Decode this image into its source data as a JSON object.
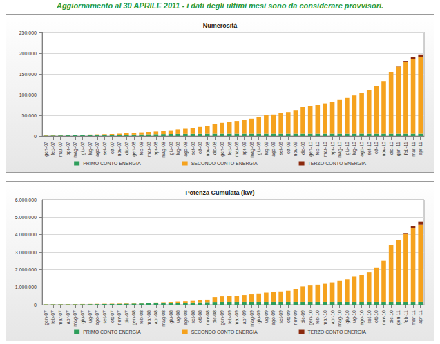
{
  "header": {
    "title": "Aggiornamento al 30 APRILE 2011 - i dati degli ultimi mesi sono da considerare provvisori."
  },
  "chart_data": [
    {
      "type": "bar",
      "title": "Numerosità",
      "stacked": true,
      "grid": true,
      "legend": "bottom",
      "categories": [
        "gen-07",
        "feb-07",
        "mar-07",
        "apr-07",
        "mag-07",
        "giu-07",
        "lug-07",
        "ago-07",
        "set-07",
        "ott-07",
        "nov-07",
        "dic-07",
        "gen-08",
        "feb-08",
        "mar-08",
        "apr-08",
        "mag-08",
        "giu-08",
        "lug-08",
        "ago-08",
        "set-08",
        "ott-08",
        "nov-08",
        "dic-08",
        "gen-09",
        "feb-09",
        "mar-09",
        "apr-09",
        "mag-09",
        "giu-09",
        "lug-09",
        "ago-09",
        "set-09",
        "ott-09",
        "nov-09",
        "dic-09",
        "gen-10",
        "feb-10",
        "mar-10",
        "apr-10",
        "mag-10",
        "giu-10",
        "lug-10",
        "ago-10",
        "set-10",
        "ott-10",
        "nov-10",
        "dic-10",
        "gen-11",
        "feb-11",
        "mar-11",
        "apr-11"
      ],
      "ylim": [
        0,
        250000
      ],
      "yticks": [
        0,
        {
          "value": 50000,
          "label": "50.000"
        },
        {
          "value": 100000,
          "label": "100.000"
        },
        {
          "value": 150000,
          "label": "150.000"
        },
        {
          "value": 200000,
          "label": "200.000"
        },
        {
          "value": 250000,
          "label": "250.000"
        }
      ],
      "series": [
        {
          "name": "PRIMO CONTO ENERGIA",
          "color": "#2e9e5b",
          "values": [
            1000,
            1200,
            1400,
            1600,
            1800,
            2000,
            2200,
            2400,
            2600,
            2800,
            3000,
            3300,
            3600,
            3900,
            4200,
            4500,
            4800,
            5000,
            5200,
            5300,
            5400,
            5500,
            5600,
            5700,
            5700,
            5700,
            5700,
            5700,
            5700,
            5700,
            5700,
            5700,
            5700,
            5700,
            5700,
            5700,
            5700,
            5700,
            5700,
            5700,
            5700,
            5700,
            5700,
            5700,
            5700,
            5700,
            5700,
            5700,
            5700,
            5700,
            5700,
            5700
          ]
        },
        {
          "name": "SECONDO CONTO ENERGIA",
          "color": "#f5a21e",
          "values": [
            1000,
            1000,
            1100,
            1200,
            1200,
            1300,
            1400,
            1600,
            1900,
            2200,
            2800,
            3700,
            4400,
            5100,
            5800,
            6500,
            7700,
            9000,
            10800,
            12200,
            14100,
            16500,
            19400,
            24300,
            26300,
            28300,
            30800,
            33300,
            36300,
            40300,
            44300,
            46300,
            49300,
            52300,
            57300,
            64300,
            66300,
            69300,
            73300,
            77300,
            81300,
            86300,
            92300,
            98300,
            104300,
            114300,
            127300,
            149300,
            161800,
            172800,
            180800,
            185300
          ]
        },
        {
          "name": "TERZO CONTO ENERGIA",
          "color": "#8b2a0e",
          "values": [
            0,
            0,
            0,
            0,
            0,
            0,
            0,
            0,
            0,
            0,
            0,
            0,
            0,
            0,
            0,
            0,
            0,
            0,
            0,
            0,
            0,
            0,
            0,
            0,
            0,
            0,
            0,
            0,
            0,
            0,
            0,
            0,
            0,
            0,
            0,
            0,
            0,
            0,
            0,
            0,
            0,
            0,
            0,
            0,
            0,
            0,
            0,
            0,
            500,
            1500,
            3500,
            6000
          ]
        }
      ]
    },
    {
      "type": "bar",
      "title": "Potenza Cumulata (kW)",
      "stacked": true,
      "grid": true,
      "legend": "bottom",
      "categories": [
        "gen-07",
        "feb-07",
        "mar-07",
        "apr-07",
        "mag-07",
        "giu-07",
        "lug-07",
        "ago-07",
        "set-07",
        "ott-07",
        "nov-07",
        "dic-07",
        "gen-08",
        "feb-08",
        "mar-08",
        "apr-08",
        "mag-08",
        "giu-08",
        "lug-08",
        "ago-08",
        "set-08",
        "ott-08",
        "nov-08",
        "dic-08",
        "gen-09",
        "feb-09",
        "mar-09",
        "apr-09",
        "mag-09",
        "giu-09",
        "lug-09",
        "ago-09",
        "set-09",
        "ott-09",
        "nov-09",
        "dic-09",
        "gen-10",
        "feb-10",
        "mar-10",
        "apr-10",
        "mag-10",
        "giu-10",
        "lug-10",
        "ago-10",
        "set-10",
        "ott-10",
        "nov-10",
        "dic-10",
        "gen-11",
        "feb-11",
        "mar-11",
        "apr-11"
      ],
      "ylim": [
        0,
        6000000
      ],
      "yticks": [
        0,
        {
          "value": 1000000,
          "label": "1.000.000"
        },
        {
          "value": 2000000,
          "label": "2.000.000"
        },
        {
          "value": 3000000,
          "label": "3.000.000"
        },
        {
          "value": 4000000,
          "label": "4.000.000"
        },
        {
          "value": 5000000,
          "label": "5.000.000"
        },
        {
          "value": 6000000,
          "label": "6.000.000"
        }
      ],
      "series": [
        {
          "name": "PRIMO CONTO ENERGIA",
          "color": "#2e9e5b",
          "values": [
            20000,
            22000,
            24000,
            26000,
            28000,
            30000,
            33000,
            36000,
            40000,
            44000,
            50000,
            60000,
            66000,
            73000,
            80000,
            87000,
            95000,
            102000,
            110000,
            118000,
            126000,
            135000,
            145000,
            155000,
            160000,
            160000,
            160000,
            160000,
            160000,
            160000,
            160000,
            160000,
            160000,
            160000,
            160000,
            160000,
            160000,
            160000,
            160000,
            160000,
            160000,
            160000,
            160000,
            160000,
            160000,
            160000,
            160000,
            160000,
            160000,
            160000,
            160000,
            160000
          ]
        },
        {
          "name": "SECONDO CONTO ENERGIA",
          "color": "#f5a21e",
          "values": [
            10000,
            10000,
            11000,
            12000,
            12000,
            13000,
            13000,
            14000,
            15000,
            16000,
            20000,
            27000,
            29000,
            32000,
            35000,
            38000,
            45000,
            53000,
            65000,
            72000,
            84000,
            105000,
            135000,
            275000,
            310000,
            330000,
            350000,
            390000,
            430000,
            480000,
            530000,
            560000,
            600000,
            640000,
            720000,
            890000,
            940000,
            990000,
            1040000,
            1120000,
            1190000,
            1290000,
            1440000,
            1540000,
            1690000,
            1940000,
            2340000,
            3240000,
            3520000,
            3880000,
            4220000,
            4390000
          ]
        },
        {
          "name": "TERZO CONTO ENERGIA",
          "color": "#8b2a0e",
          "values": [
            0,
            0,
            0,
            0,
            0,
            0,
            0,
            0,
            0,
            0,
            0,
            0,
            0,
            0,
            0,
            0,
            0,
            0,
            0,
            0,
            0,
            0,
            0,
            0,
            0,
            0,
            0,
            0,
            0,
            0,
            0,
            0,
            0,
            0,
            0,
            0,
            0,
            0,
            0,
            0,
            0,
            0,
            0,
            0,
            0,
            0,
            0,
            0,
            20000,
            60000,
            120000,
            200000
          ]
        }
      ]
    }
  ]
}
